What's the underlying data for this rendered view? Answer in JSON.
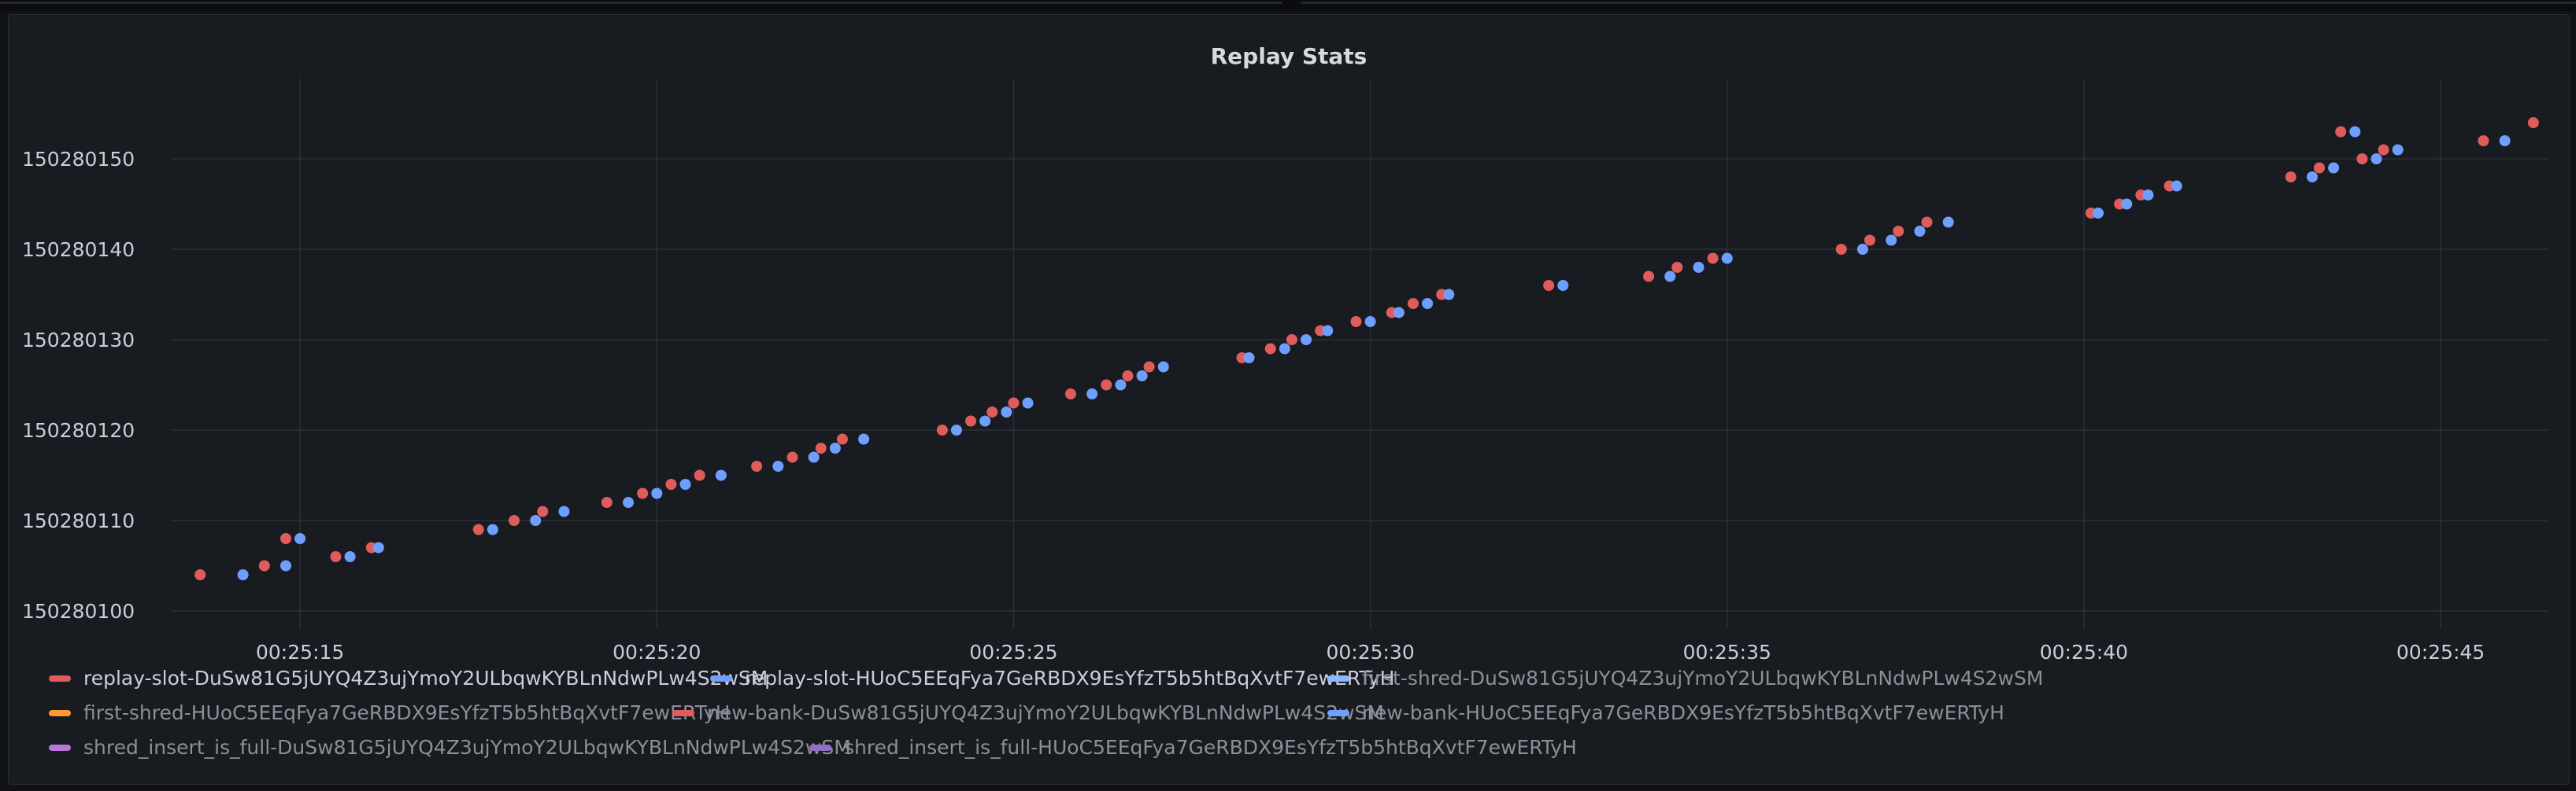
{
  "panel": {
    "title": "Replay Stats"
  },
  "chart_data": {
    "type": "scatter",
    "title": "Replay Stats",
    "xlabel": "",
    "ylabel": "",
    "x_ticks": [
      "00:25:15",
      "00:25:20",
      "00:25:25",
      "00:25:30",
      "00:25:35",
      "00:25:40",
      "00:25:45"
    ],
    "y_ticks": [
      "150280100",
      "150280110",
      "150280120",
      "150280130",
      "150280140",
      "150280150"
    ],
    "xlim_seconds": [
      13.2,
      46.5
    ],
    "ylim": [
      150280098,
      150280158
    ],
    "grid": true,
    "legend_position": "bottom",
    "series": [
      {
        "name": "replay-slot-DuSw81G5jUYQ4Z3ujYmoY2ULbqwKYBLnNdwPLw4S2wSM",
        "color": "#e05c5c",
        "points": [
          [
            "00:25:13.6",
            150280104
          ],
          [
            "00:25:14.5",
            150280105
          ],
          [
            "00:25:14.8",
            150280108
          ],
          [
            "00:25:15.5",
            150280106
          ],
          [
            "00:25:16.0",
            150280107
          ],
          [
            "00:25:17.5",
            150280109
          ],
          [
            "00:25:18.0",
            150280110
          ],
          [
            "00:25:18.4",
            150280111
          ],
          [
            "00:25:19.3",
            150280112
          ],
          [
            "00:25:19.8",
            150280113
          ],
          [
            "00:25:20.2",
            150280114
          ],
          [
            "00:25:20.6",
            150280115
          ],
          [
            "00:25:21.4",
            150280116
          ],
          [
            "00:25:21.9",
            150280117
          ],
          [
            "00:25:22.3",
            150280118
          ],
          [
            "00:25:22.6",
            150280119
          ],
          [
            "00:25:24.0",
            150280120
          ],
          [
            "00:25:24.4",
            150280121
          ],
          [
            "00:25:24.7",
            150280122
          ],
          [
            "00:25:25.0",
            150280123
          ],
          [
            "00:25:25.8",
            150280124
          ],
          [
            "00:25:26.3",
            150280125
          ],
          [
            "00:25:26.6",
            150280126
          ],
          [
            "00:25:26.9",
            150280127
          ],
          [
            "00:25:28.2",
            150280128
          ],
          [
            "00:25:28.6",
            150280129
          ],
          [
            "00:25:28.9",
            150280130
          ],
          [
            "00:25:29.3",
            150280131
          ],
          [
            "00:25:29.8",
            150280132
          ],
          [
            "00:25:30.3",
            150280133
          ],
          [
            "00:25:30.6",
            150280134
          ],
          [
            "00:25:31.0",
            150280135
          ],
          [
            "00:25:32.5",
            150280136
          ],
          [
            "00:25:33.9",
            150280137
          ],
          [
            "00:25:34.3",
            150280138
          ],
          [
            "00:25:34.8",
            150280139
          ],
          [
            "00:25:36.6",
            150280140
          ],
          [
            "00:25:37.0",
            150280141
          ],
          [
            "00:25:37.4",
            150280142
          ],
          [
            "00:25:37.8",
            150280143
          ],
          [
            "00:25:40.1",
            150280144
          ],
          [
            "00:25:40.5",
            150280145
          ],
          [
            "00:25:40.8",
            150280146
          ],
          [
            "00:25:41.2",
            150280147
          ],
          [
            "00:25:42.9",
            150280148
          ],
          [
            "00:25:43.3",
            150280149
          ],
          [
            "00:25:43.6",
            150280153
          ],
          [
            "00:25:43.9",
            150280150
          ],
          [
            "00:25:44.2",
            150280151
          ],
          [
            "00:25:45.6",
            150280152
          ],
          [
            "00:25:46.3",
            150280154
          ]
        ]
      },
      {
        "name": "replay-slot-HUoC5EEqFya7GeRBDX9EsYfzT5b5htBqXvtF7ewERTyH",
        "color": "#6e9fff",
        "points": [
          [
            "00:25:14.2",
            150280104
          ],
          [
            "00:25:14.8",
            150280105
          ],
          [
            "00:25:15.0",
            150280108
          ],
          [
            "00:25:15.7",
            150280106
          ],
          [
            "00:25:16.1",
            150280107
          ],
          [
            "00:25:17.7",
            150280109
          ],
          [
            "00:25:18.3",
            150280110
          ],
          [
            "00:25:18.7",
            150280111
          ],
          [
            "00:25:19.6",
            150280112
          ],
          [
            "00:25:20.0",
            150280113
          ],
          [
            "00:25:20.4",
            150280114
          ],
          [
            "00:25:20.9",
            150280115
          ],
          [
            "00:25:21.7",
            150280116
          ],
          [
            "00:25:22.2",
            150280117
          ],
          [
            "00:25:22.5",
            150280118
          ],
          [
            "00:25:22.9",
            150280119
          ],
          [
            "00:25:24.2",
            150280120
          ],
          [
            "00:25:24.6",
            150280121
          ],
          [
            "00:25:24.9",
            150280122
          ],
          [
            "00:25:25.2",
            150280123
          ],
          [
            "00:25:26.1",
            150280124
          ],
          [
            "00:25:26.5",
            150280125
          ],
          [
            "00:25:26.8",
            150280126
          ],
          [
            "00:25:27.1",
            150280127
          ],
          [
            "00:25:28.3",
            150280128
          ],
          [
            "00:25:28.8",
            150280129
          ],
          [
            "00:25:29.1",
            150280130
          ],
          [
            "00:25:29.4",
            150280131
          ],
          [
            "00:25:30.0",
            150280132
          ],
          [
            "00:25:30.4",
            150280133
          ],
          [
            "00:25:30.8",
            150280134
          ],
          [
            "00:25:31.1",
            150280135
          ],
          [
            "00:25:32.7",
            150280136
          ],
          [
            "00:25:34.2",
            150280137
          ],
          [
            "00:25:34.6",
            150280138
          ],
          [
            "00:25:35.0",
            150280139
          ],
          [
            "00:25:36.9",
            150280140
          ],
          [
            "00:25:37.3",
            150280141
          ],
          [
            "00:25:37.7",
            150280142
          ],
          [
            "00:25:38.1",
            150280143
          ],
          [
            "00:25:40.2",
            150280144
          ],
          [
            "00:25:40.6",
            150280145
          ],
          [
            "00:25:40.9",
            150280146
          ],
          [
            "00:25:41.3",
            150280147
          ],
          [
            "00:25:43.2",
            150280148
          ],
          [
            "00:25:43.5",
            150280149
          ],
          [
            "00:25:43.8",
            150280153
          ],
          [
            "00:25:44.1",
            150280150
          ],
          [
            "00:25:44.4",
            150280151
          ],
          [
            "00:25:45.9",
            150280152
          ]
        ]
      }
    ],
    "legend": [
      {
        "name": "replay-slot-DuSw81G5jUYQ4Z3ujYmoY2ULbqwKYBLnNdwPLw4S2wSM",
        "color": "#e05c5c",
        "active": true
      },
      {
        "name": "replay-slot-HUoC5EEqFya7GeRBDX9EsYfzT5b5htBqXvtF7ewERTyH",
        "color": "#6e9fff",
        "active": true
      },
      {
        "name": "first-shred-DuSw81G5jUYQ4Z3ujYmoY2ULbqwKYBLnNdwPLw4S2wSM",
        "color": "#8ab8ff",
        "active": false
      },
      {
        "name": "first-shred-HUoC5EEqFya7GeRBDX9EsYfzT5b5htBqXvtF7ewERTyH",
        "color": "#ff9830",
        "active": false
      },
      {
        "name": "new-bank-DuSw81G5jUYQ4Z3ujYmoY2ULbqwKYBLnNdwPLw4S2wSM",
        "color": "#e05c5c",
        "active": false
      },
      {
        "name": "new-bank-HUoC5EEqFya7GeRBDX9EsYfzT5b5htBqXvtF7ewERTyH",
        "color": "#6e9fff",
        "active": false
      },
      {
        "name": "shred_insert_is_full-DuSw81G5jUYQ4Z3ujYmoY2ULbqwKYBLnNdwPLw4S2wSM",
        "color": "#b877d9",
        "active": false
      },
      {
        "name": "shred_insert_is_full-HUoC5EEqFya7GeRBDX9EsYfzT5b5htBqXvtF7ewERTyH",
        "color": "#8f70c9",
        "active": false
      }
    ]
  }
}
